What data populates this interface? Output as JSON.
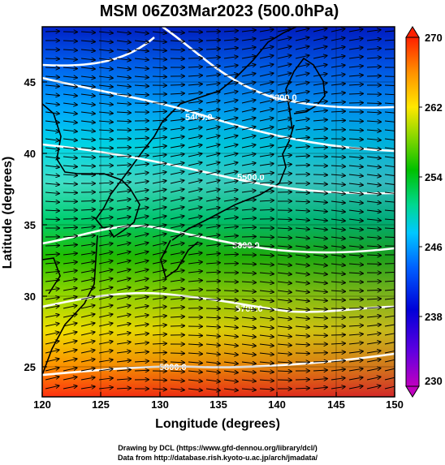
{
  "title": "MSM 06Z03Mar2023 (500.0hPa)",
  "x_axis": {
    "label": "Longitude (degrees)",
    "range": [
      120,
      150
    ],
    "ticks": [
      "120",
      "125",
      "130",
      "135",
      "140",
      "145",
      "150"
    ]
  },
  "y_axis": {
    "label": "Latitude  (degrees)",
    "range": [
      23,
      48
    ],
    "ticks": [
      "25",
      "30",
      "35",
      "40",
      "45"
    ]
  },
  "colorbar": {
    "range": [
      230,
      270
    ],
    "labels": [
      "270",
      "262",
      "254",
      "246",
      "238",
      "230"
    ],
    "stops": [
      "#ff0080",
      "#8000ff",
      "#0000dd",
      "#0088ff",
      "#00ccff",
      "#00dd88",
      "#00cc00",
      "#88dd00",
      "#ffee00",
      "#ffaa00",
      "#ff5500",
      "#ff0000"
    ]
  },
  "contours": [
    {
      "label": "5300.0"
    },
    {
      "label": "5400.0"
    },
    {
      "label": "5500.0"
    },
    {
      "label": "5600.0"
    },
    {
      "label": "5700.0"
    },
    {
      "label": "5800.0"
    }
  ],
  "credits": {
    "line1": "Drawing by DCL (https://www.gfd-dennou.org/library/dcl/)",
    "line2": "Data from http://database.rish.kyoto-u.ac.jp/arch/jmadata/"
  }
}
